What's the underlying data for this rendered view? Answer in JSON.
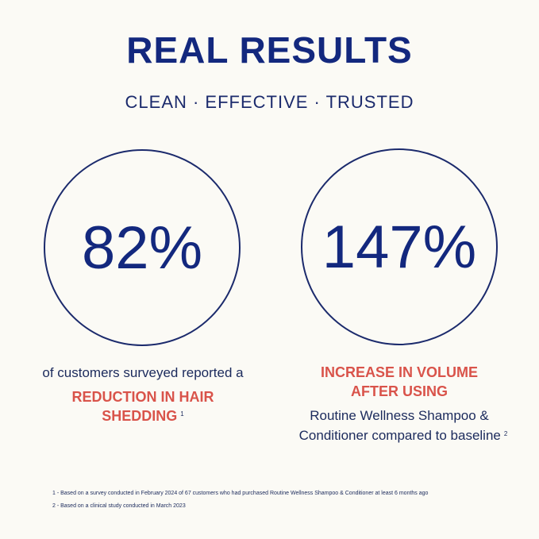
{
  "header": {
    "title": "REAL RESULTS",
    "subtitle": "CLEAN · EFFECTIVE · TRUSTED"
  },
  "colors": {
    "navy": "#13287e",
    "accent_red": "#d9534a"
  },
  "stats": [
    {
      "value": "82%",
      "description": "of customers surveyed reported a",
      "highlight_line1": "REDUCTION IN HAIR",
      "highlight_line2": "SHEDDING",
      "footnote_ref": "1"
    },
    {
      "value": "147%",
      "highlight_line1": "INCREASE IN VOLUME",
      "highlight_line2": "AFTER USING",
      "description_line1": "Routine Wellness Shampoo &",
      "description_line2": "Conditioner compared to baseline",
      "footnote_ref": "2"
    }
  ],
  "footnotes": [
    "1 -  Based on a survey conducted in February 2024 of 67 customers who had purchased Routine Wellness Shampoo & Conditioner at least 6 months ago",
    "2 - Based on a clinical study conducted in March 2023"
  ]
}
